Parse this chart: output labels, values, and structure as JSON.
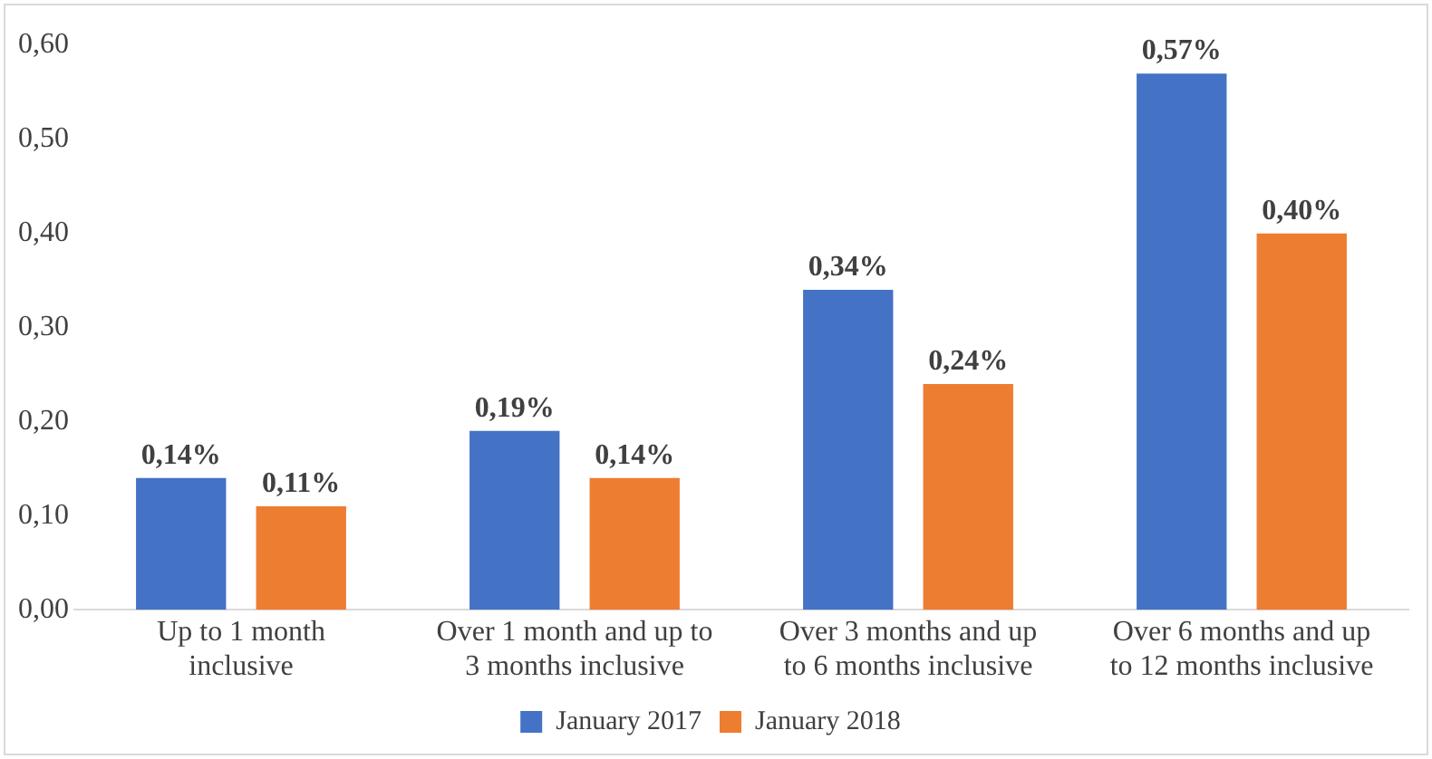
{
  "chart_data": {
    "type": "bar",
    "categories": [
      "Up to 1 month inclusive",
      "Over 1 month and up to 3 months inclusive",
      "Over 3 months and up to 6 months inclusive",
      "Over 6 months and up to 12 months inclusive"
    ],
    "series": [
      {
        "name": "January 2017",
        "color": "#4472c4",
        "values": [
          0.14,
          0.19,
          0.34,
          0.57
        ],
        "value_labels": [
          "0,14%",
          "0,19%",
          "0,34%",
          "0,57%"
        ]
      },
      {
        "name": "January 2018",
        "color": "#ed7d31",
        "values": [
          0.11,
          0.14,
          0.24,
          0.4
        ],
        "value_labels": [
          "0,11%",
          "0,14%",
          "0,24%",
          "0,40%"
        ]
      }
    ],
    "ylim": [
      0,
      0.6
    ],
    "yticks": [
      {
        "value": 0,
        "label": "0,00"
      },
      {
        "value": 0.1,
        "label": "0,10"
      },
      {
        "value": 0.2,
        "label": "0,20"
      },
      {
        "value": 0.3,
        "label": "0,30"
      },
      {
        "value": 0.4,
        "label": "0,40"
      },
      {
        "value": 0.5,
        "label": "0,50"
      },
      {
        "value": 0.6,
        "label": "0,60"
      }
    ],
    "grid": false,
    "legend": "bottom"
  }
}
